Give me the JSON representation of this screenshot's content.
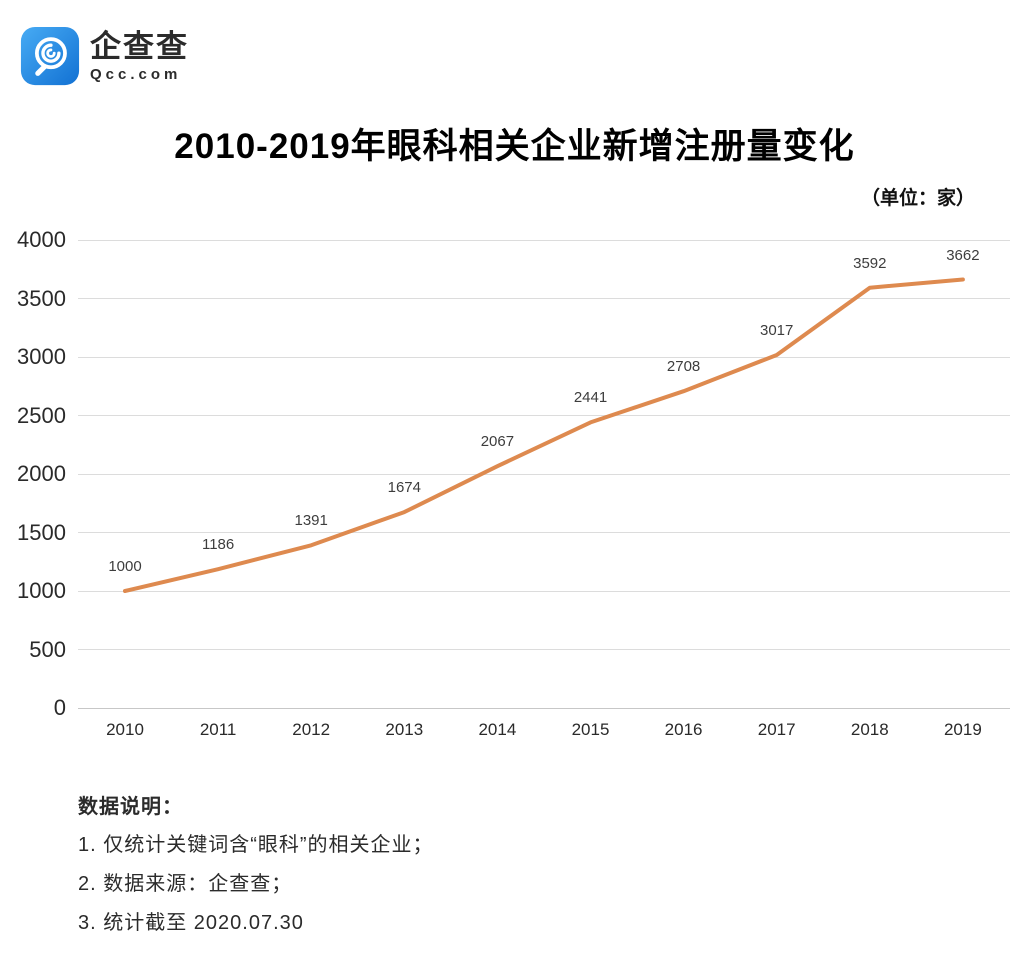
{
  "logo": {
    "name": "企查查",
    "domain": "Qcc.com",
    "icon": "magnifier-spiral-icon",
    "icon_bg_top": "#47abf4",
    "icon_bg_bottom": "#1271d3"
  },
  "chart_data": {
    "type": "line",
    "title": "2010-2019年眼科相关企业新增注册量变化",
    "unit_label": "（单位：家）",
    "categories": [
      "2010",
      "2011",
      "2012",
      "2013",
      "2014",
      "2015",
      "2016",
      "2017",
      "2018",
      "2019"
    ],
    "values": [
      1000,
      1186,
      1391,
      1674,
      2067,
      2441,
      2708,
      3017,
      3592,
      3662
    ],
    "xlabel": "",
    "ylabel": "",
    "ylim": [
      0,
      4000
    ],
    "y_tick_step": 500,
    "grid": true,
    "legend": "none",
    "line_color": "#de8a4f",
    "data_labels": true
  },
  "notes": {
    "title": "数据说明：",
    "items": [
      "1. 仅统计关键词含“眼科”的相关企业；",
      "2. 数据来源：企查查；",
      "3. 统计截至 2020.07.30"
    ]
  }
}
